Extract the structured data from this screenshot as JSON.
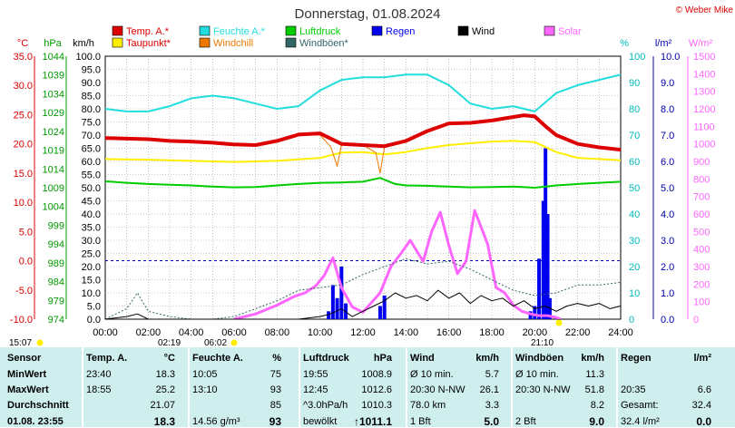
{
  "title": "Donnerstag, 01.08.2024",
  "credit": "© Weber Mike",
  "axis_units": {
    "temp": "°C",
    "pressure": "hPa",
    "wind": "km/h",
    "humidity": "%",
    "rain": "l/m²",
    "solar": "W/m²"
  },
  "legend": [
    {
      "label": "Temp. A.*",
      "color": "#dd0000"
    },
    {
      "label": "Feuchte A.*",
      "color": "#22dddd"
    },
    {
      "label": "Luftdruck",
      "color": "#00cc00"
    },
    {
      "label": "Wind",
      "color": "#000000"
    },
    {
      "label": "Solar",
      "color": "#ff66ff"
    },
    {
      "label": "Taupunkt*",
      "color": "#ffee00"
    },
    {
      "label": "Windchill",
      "color": "#ee7700"
    },
    {
      "label": "Windböen*",
      "color": "#336666"
    },
    {
      "label": "Regen",
      "color": "#0000ee"
    }
  ],
  "time_markers": {
    "start": "15:07",
    "sunrise": "02:19",
    "sunrise2": "06:02",
    "sunset": "21:10"
  },
  "chart_data": {
    "type": "line",
    "x_ticks": [
      "00:00",
      "02:00",
      "04:00",
      "06:00",
      "08:00",
      "10:00",
      "12:00",
      "14:00",
      "16:00",
      "18:00",
      "20:00",
      "22:00",
      "24:00"
    ],
    "axes": {
      "temp_c": {
        "range": [
          -10,
          35
        ],
        "ticks": [
          "35.0",
          "30.0",
          "25.0",
          "20.0",
          "15.0",
          "10.0",
          "5.0",
          "0.0",
          "-5.0",
          "-10.0"
        ]
      },
      "pressure_hpa": {
        "range": [
          974,
          1044
        ],
        "ticks": [
          "1044",
          "1039",
          "1034",
          "1029",
          "1024",
          "1019",
          "1014",
          "1009",
          "1004",
          "999",
          "994",
          "989",
          "984",
          "979",
          "974"
        ]
      },
      "wind_kmh": {
        "range": [
          0,
          100
        ],
        "ticks": [
          "100.0",
          "95.0",
          "90.0",
          "85.0",
          "80.0",
          "75.0",
          "70.0",
          "65.0",
          "60.0",
          "55.0",
          "50.0",
          "45.0",
          "40.0",
          "35.0",
          "30.0",
          "25.0",
          "20.0",
          "15.0",
          "10.0",
          "5.0",
          "0.0"
        ]
      },
      "humidity_pct": {
        "range": [
          0,
          100
        ],
        "ticks": [
          "100",
          "90",
          "80",
          "70",
          "60",
          "50",
          "40",
          "30",
          "20",
          "10",
          "0"
        ]
      },
      "rain_lm2": {
        "range": [
          0,
          10
        ],
        "ticks": [
          "10.0",
          "9.0",
          "8.0",
          "7.0",
          "6.0",
          "5.0",
          "4.0",
          "3.0",
          "2.0",
          "1.0",
          "0.0"
        ]
      },
      "solar_wm2": {
        "range": [
          0,
          1500
        ],
        "ticks": [
          "1500",
          "1400",
          "1300",
          "1200",
          "1100",
          "1000",
          "900",
          "800",
          "700",
          "600",
          "500",
          "400",
          "300",
          "200",
          "100",
          "0"
        ]
      }
    },
    "series": [
      {
        "name": "Temp. A.*",
        "axis": "temp_c",
        "color": "#dd0000",
        "width": 4,
        "x": [
          0,
          1,
          2,
          3,
          4,
          5,
          6,
          7,
          8,
          9,
          10,
          11,
          12,
          13,
          14,
          15,
          16,
          17,
          18,
          19,
          19.5,
          20,
          20.5,
          21,
          22,
          23,
          24
        ],
        "y": [
          21.0,
          20.9,
          20.8,
          20.5,
          20.4,
          20.2,
          19.9,
          19.8,
          20.5,
          21.6,
          21.8,
          20.0,
          19.8,
          19.6,
          20.5,
          22.2,
          23.5,
          23.6,
          24.0,
          24.6,
          24.9,
          24.7,
          23.0,
          21.5,
          20.0,
          19.4,
          19.0
        ]
      },
      {
        "name": "Feuchte A.*",
        "axis": "humidity_pct",
        "color": "#22dddd",
        "width": 2,
        "x": [
          0,
          1,
          2,
          3,
          4,
          5,
          6,
          7,
          8,
          9,
          10,
          11,
          12,
          13,
          14,
          15,
          16,
          17,
          18,
          19,
          20,
          21,
          22,
          23,
          24
        ],
        "y": [
          80,
          79,
          79,
          81,
          84,
          85,
          84,
          82,
          80,
          81,
          87,
          91,
          92,
          92,
          93,
          93,
          89,
          82,
          80,
          81,
          79,
          86,
          89,
          91,
          93
        ]
      },
      {
        "name": "Luftdruck",
        "axis": "pressure_hpa",
        "color": "#00cc00",
        "width": 2,
        "x": [
          0,
          1,
          2,
          3,
          4,
          5,
          6,
          7,
          8,
          9,
          10,
          11,
          12,
          12.8,
          13.5,
          14,
          15,
          16,
          17,
          18,
          19,
          20,
          21,
          22,
          23,
          24
        ],
        "y": [
          1010.7,
          1010.3,
          1010.0,
          1009.8,
          1009.6,
          1009.3,
          1009.1,
          1009.2,
          1009.6,
          1010.0,
          1010.3,
          1010.4,
          1010.6,
          1011.6,
          1010.0,
          1009.6,
          1009.5,
          1009.3,
          1009.1,
          1009.2,
          1009.3,
          1009.0,
          1009.6,
          1010.0,
          1010.3,
          1010.6
        ]
      },
      {
        "name": "Taupunkt*",
        "axis": "temp_c",
        "color": "#ffee00",
        "width": 2,
        "x": [
          0,
          2,
          4,
          6,
          8,
          10,
          11,
          12,
          13,
          14,
          15,
          16,
          17,
          18,
          19,
          20,
          21,
          22,
          23,
          24
        ],
        "y": [
          17.4,
          17.3,
          17.1,
          16.9,
          17.1,
          17.6,
          18.5,
          18.6,
          18.2,
          18.6,
          19.3,
          19.8,
          20.1,
          20.4,
          20.5,
          20.3,
          18.6,
          17.6,
          17.4,
          17.2
        ]
      },
      {
        "name": "Windchill",
        "axis": "temp_c",
        "color": "#ee7700",
        "width": 1,
        "x": [
          0,
          1,
          2,
          3,
          4,
          5,
          6,
          7,
          8,
          9,
          10,
          10.5,
          10.8,
          11,
          12,
          12.6,
          12.8,
          13,
          14,
          15,
          16,
          17,
          18,
          19,
          19.5,
          20,
          20.5,
          21,
          22,
          23,
          24
        ],
        "y": [
          21.0,
          20.9,
          20.8,
          20.5,
          20.4,
          20.2,
          19.9,
          19.8,
          20.5,
          21.6,
          21.5,
          19.5,
          16.2,
          19.8,
          19.8,
          18.5,
          15.0,
          19.4,
          20.3,
          22.2,
          23.5,
          23.6,
          24.0,
          24.6,
          24.9,
          24.7,
          23.0,
          21.5,
          20.0,
          19.4,
          19.0
        ]
      },
      {
        "name": "Wind",
        "axis": "wind_kmh",
        "color": "#000000",
        "width": 1,
        "x": [
          0,
          1,
          1.5,
          2,
          3,
          5,
          7,
          9,
          10,
          10.5,
          11,
          11.5,
          12,
          12.5,
          13,
          13.5,
          14,
          14.5,
          15,
          15.5,
          16,
          16.5,
          17,
          17.5,
          18,
          18.5,
          19,
          19.5,
          20,
          20.5,
          21,
          21.5,
          22,
          22.5,
          23,
          23.5,
          24
        ],
        "y": [
          0,
          1,
          2,
          0,
          0,
          0,
          0,
          0,
          1,
          2,
          4,
          1,
          3,
          5,
          7,
          10,
          8,
          9,
          7,
          11,
          8,
          10,
          6,
          9,
          7,
          8,
          5,
          7,
          4,
          5,
          3,
          5,
          6,
          5,
          6,
          4,
          5
        ]
      },
      {
        "name": "Windböen*",
        "axis": "wind_kmh",
        "color": "#336666",
        "width": 1,
        "dash": true,
        "x": [
          0,
          1,
          1.5,
          2,
          3,
          4,
          5,
          6,
          7,
          8,
          9,
          10,
          11,
          12,
          13,
          14,
          15,
          16,
          17,
          18,
          19,
          20,
          21,
          22,
          23,
          24
        ],
        "y": [
          0,
          4,
          10,
          3,
          1,
          0,
          0,
          1,
          4,
          7,
          11,
          12,
          13,
          17,
          20,
          23,
          21,
          22,
          19,
          15,
          11,
          9,
          10,
          13,
          13,
          14
        ]
      },
      {
        "name": "Solar",
        "axis": "solar_wm2",
        "color": "#ff66ff",
        "width": 3,
        "x": [
          6.0,
          7,
          8,
          8.8,
          9.3,
          9.8,
          10.2,
          10.6,
          11,
          11.5,
          12,
          12.8,
          13.3,
          13.8,
          14.2,
          14.8,
          15.2,
          15.6,
          16,
          16.4,
          16.8,
          17.2,
          17.8,
          18.2,
          18.6,
          19,
          19.4,
          19.8,
          20.2,
          20.6,
          21,
          21.2
        ],
        "y": [
          0,
          30,
          80,
          130,
          150,
          190,
          250,
          350,
          180,
          70,
          40,
          150,
          300,
          380,
          450,
          330,
          500,
          610,
          420,
          260,
          330,
          620,
          430,
          180,
          150,
          80,
          45,
          30,
          20,
          20,
          10,
          0
        ]
      }
    ],
    "rain_bars": {
      "axis": "rain_lm2",
      "color": "#0000ee",
      "x": [
        10.4,
        10.6,
        10.8,
        11.0,
        11.2,
        12.8,
        13.0,
        19.8,
        20.0,
        20.2,
        20.4,
        20.5,
        20.6,
        20.7
      ],
      "y": [
        0.3,
        1.3,
        0.8,
        2.0,
        0.6,
        0.5,
        0.9,
        0.3,
        0.5,
        2.3,
        4.5,
        6.5,
        4.0,
        0.8
      ]
    },
    "reference_line": {
      "axis": "temp_c",
      "value": 0.0,
      "color": "#0000bb"
    }
  },
  "stats": {
    "columns": [
      {
        "header": "Sensor",
        "rows": [
          "MinWert",
          "MaxWert",
          "Durchschnitt",
          "01.08. 23:55"
        ]
      },
      {
        "header": "Temp. A.",
        "unit": "°C",
        "rows": [
          [
            "23:40",
            "18.3"
          ],
          [
            "18:55",
            "25.2"
          ],
          [
            "",
            "21.07"
          ],
          [
            "",
            "18.3"
          ]
        ]
      },
      {
        "header": "Feuchte A.",
        "unit": "%",
        "rows": [
          [
            "10:05",
            "75"
          ],
          [
            "13:10",
            "93"
          ],
          [
            "",
            "85"
          ],
          [
            "14.56 g/m³",
            "93"
          ]
        ]
      },
      {
        "header": "Luftdruck",
        "unit": "hPa",
        "rows": [
          [
            "19:55",
            "1008.9"
          ],
          [
            "12:45",
            "1012.6"
          ],
          [
            "^3.0hPa/h",
            "1010.3"
          ],
          [
            "bewölkt",
            "↑1011.1"
          ]
        ]
      },
      {
        "header": "Wind",
        "unit": "km/h",
        "rows": [
          [
            "Ø 10 min.",
            "5.7"
          ],
          [
            "20:30   N-NW",
            "26.1"
          ],
          [
            "78.0 km",
            "3.3"
          ],
          [
            "1 Bft",
            "5.0"
          ]
        ]
      },
      {
        "header": "Windböen",
        "unit": "km/h",
        "rows": [
          [
            "Ø 10 min.",
            "11.3"
          ],
          [
            "20:30   N-NW",
            "51.8"
          ],
          [
            "",
            "8.2"
          ],
          [
            "2 Bft",
            "9.0"
          ]
        ]
      },
      {
        "header": "Regen",
        "unit": "l/m²",
        "rows": [
          [
            "",
            ""
          ],
          [
            "20:35",
            "6.6"
          ],
          [
            "Gesamt:",
            "32.4"
          ],
          [
            "32.4 l/m²",
            "0.0"
          ]
        ]
      }
    ]
  }
}
